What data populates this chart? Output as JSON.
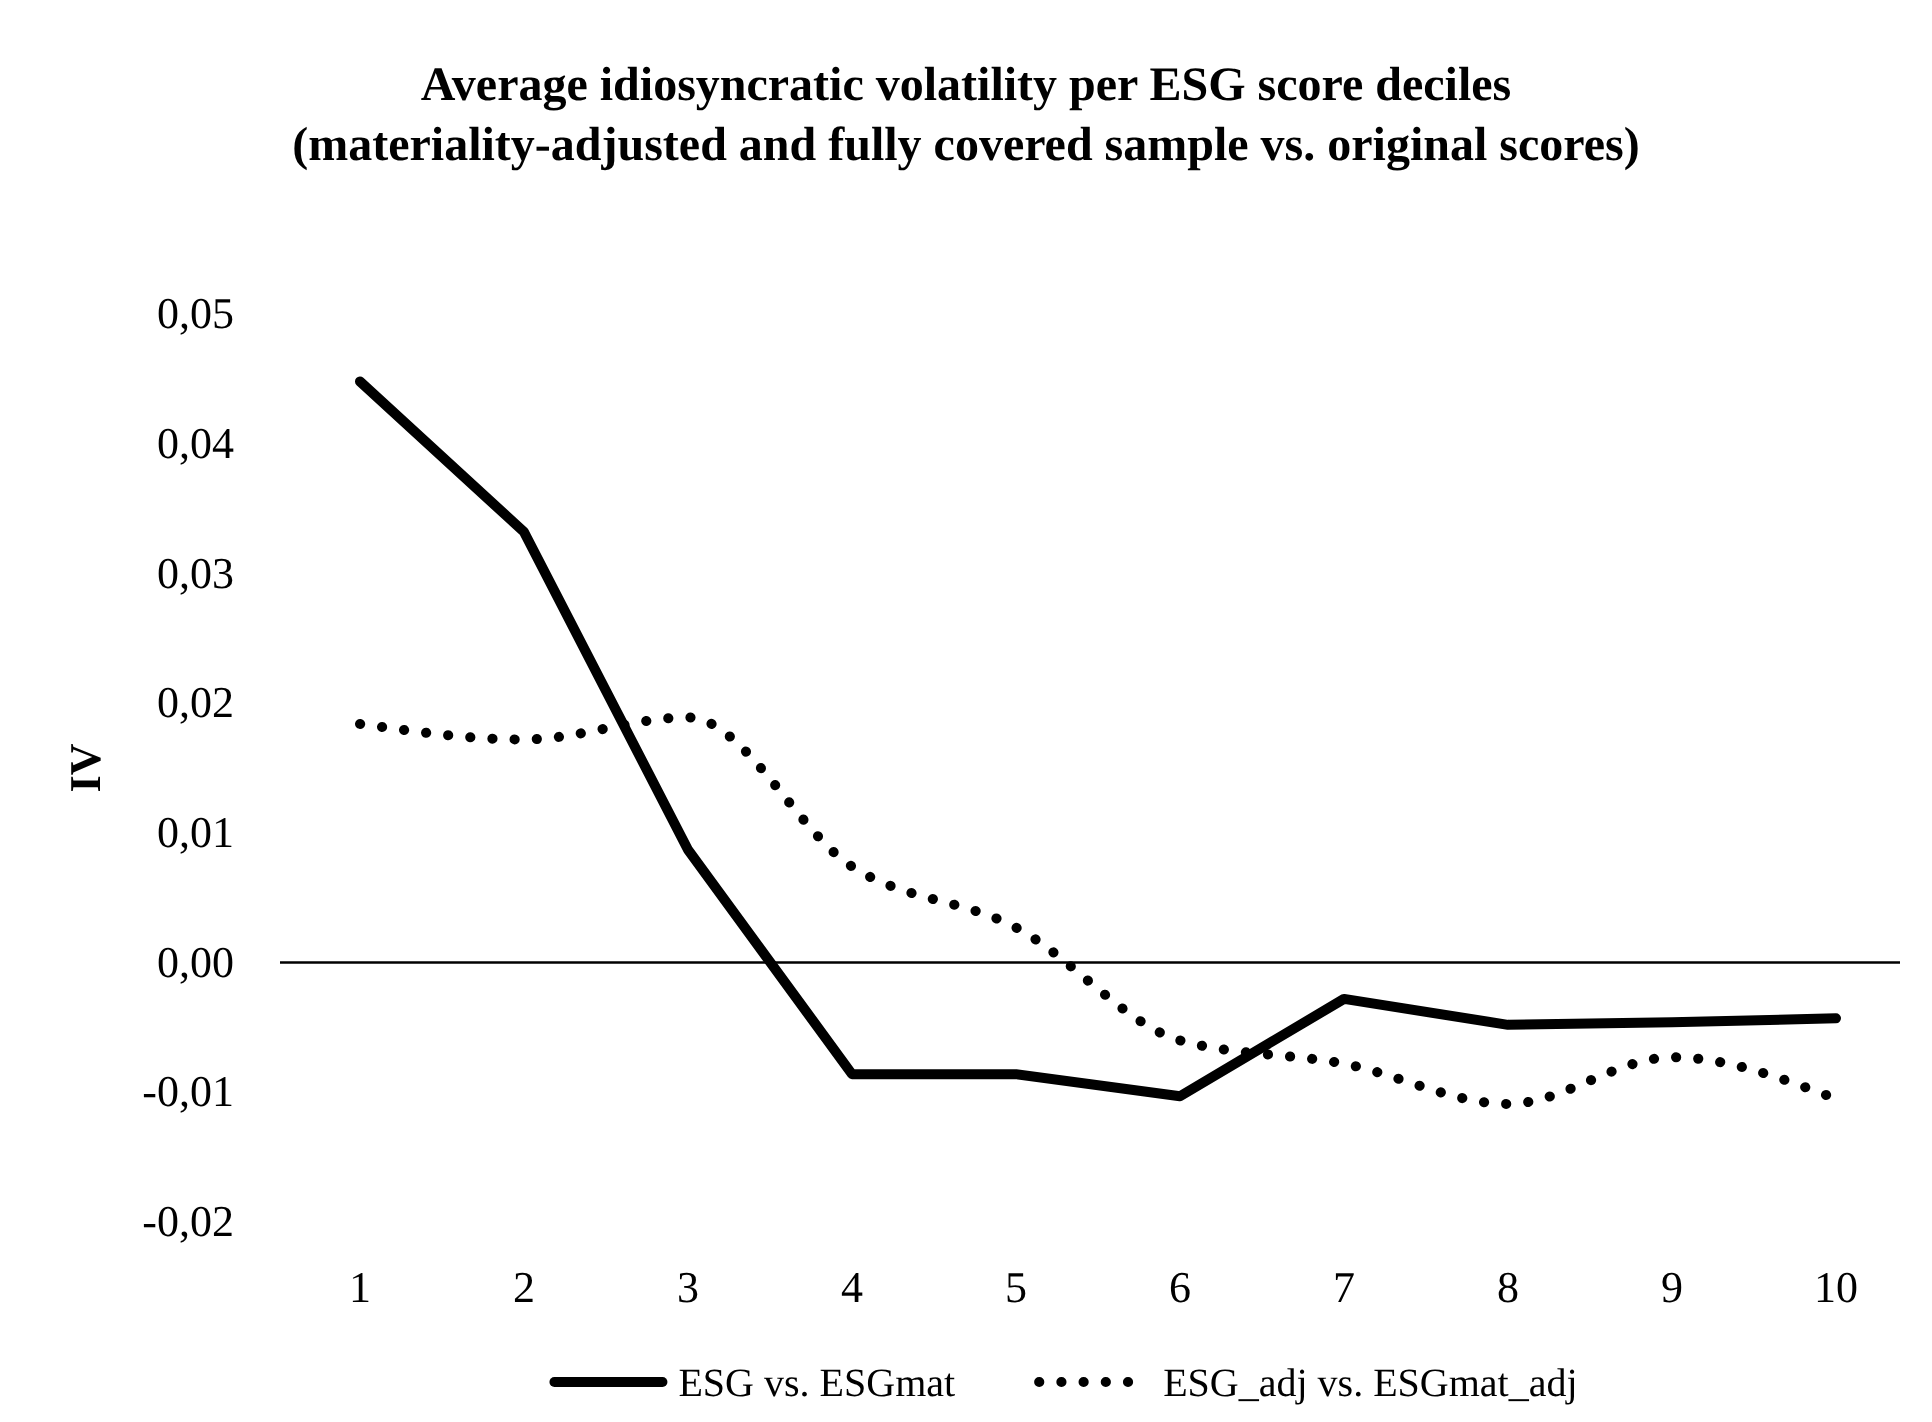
{
  "chart_data": {
    "type": "line",
    "title": "Average idiosyncratic volatility per ESG score deciles\n(materiality-adjusted and fully covered sample vs. original scores)",
    "ylabel": "IV",
    "categories": [
      "1",
      "2",
      "3",
      "4",
      "5",
      "6",
      "7",
      "8",
      "9",
      "10"
    ],
    "series": [
      {
        "name": "ESG vs. ESGmat",
        "color": "#000000",
        "line_style": "solid",
        "values": [
          0.0448,
          0.0332,
          0.0087,
          -0.0086,
          -0.0086,
          -0.0103,
          -0.0028,
          -0.0048,
          -0.0046,
          -0.0043
        ]
      },
      {
        "name": "ESG_adj vs. ESGmat_adj",
        "color": "#000000",
        "line_style": "dotted",
        "values": [
          0.0184,
          0.0172,
          0.0189,
          0.0074,
          0.0027,
          -0.006,
          -0.0078,
          -0.0109,
          -0.0073,
          -0.0105
        ]
      }
    ],
    "ylim": [
      -0.02,
      0.05
    ],
    "yticks": [
      {
        "value": -0.02,
        "label": "-0,02"
      },
      {
        "value": -0.01,
        "label": "-0,01"
      },
      {
        "value": 0,
        "label": "0,00"
      },
      {
        "value": 0.01,
        "label": "0,01"
      },
      {
        "value": 0.02,
        "label": "0,02"
      },
      {
        "value": 0.03,
        "label": "0,03"
      },
      {
        "value": 0.04,
        "label": "0,04"
      },
      {
        "value": 0.05,
        "label": "0,05"
      }
    ],
    "legend": "bottom",
    "marker": "none"
  }
}
